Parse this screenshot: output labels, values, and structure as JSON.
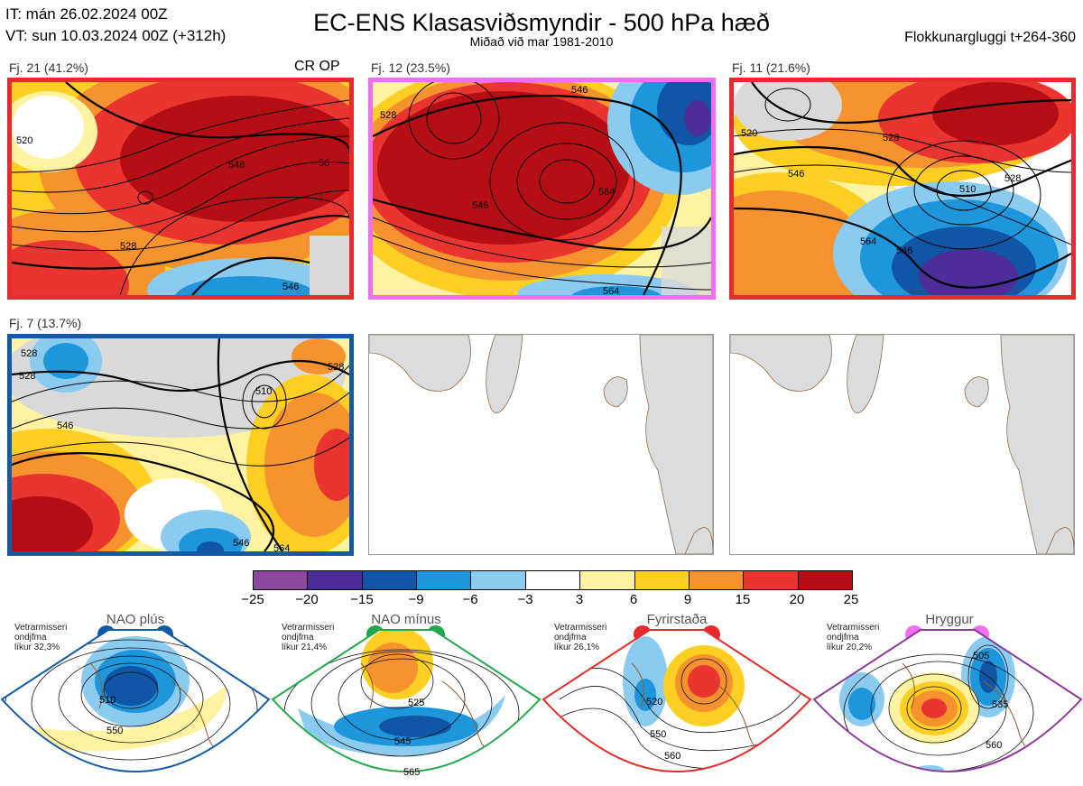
{
  "header": {
    "it": "IT: mán 26.02.2024 00Z",
    "vt": "VT: sun 10.03.2024 00Z  (+312h)",
    "title": "EC-ENS Klasasviðsmyndir - 500 hPa hæð",
    "subtitle": "Miðað við mar 1981-2010",
    "window": "Flokkunargluggi t+264-360"
  },
  "panels": [
    {
      "label": "Fj. 21 (41.2%)",
      "badge": "CR OP",
      "frame_color": "#e52b2b",
      "contours": [
        "520",
        "528",
        "546",
        "56",
        "546"
      ]
    },
    {
      "label": "Fj. 12 (23.5%)",
      "badge": "",
      "frame_color": "#ee6ff0",
      "contours": [
        "528",
        "546",
        "546",
        "564",
        "564"
      ]
    },
    {
      "label": "Fj. 11 (21.6%)",
      "badge": "",
      "frame_color": "#e52b2b",
      "contours": [
        "520",
        "528",
        "546",
        "510",
        "528",
        "546",
        "564"
      ]
    },
    {
      "label": "Fj. 7 (13.7%)",
      "badge": "",
      "frame_color": "#1259a6",
      "contours": [
        "528",
        "528",
        "510",
        "546",
        "528",
        "546",
        "564"
      ]
    }
  ],
  "colorbar": {
    "ticks": [
      "−25",
      "−20",
      "−15",
      "−9",
      "−6",
      "−3",
      "3",
      "6",
      "9",
      "15",
      "20",
      "25"
    ],
    "colors": [
      "#8e479e",
      "#4d2e98",
      "#0f56a6",
      "#1e96dc",
      "#8ccbf0",
      "#ffffff",
      "#fff3a2",
      "#fdcf22",
      "#f7932f",
      "#ea3430",
      "#b50e15"
    ]
  },
  "regimes": [
    {
      "name": "NAO plús",
      "note": [
        "Vetrarmisseri",
        "ondjfma",
        "líkur 32,3%"
      ],
      "color": "#1259a6",
      "contour_labels": [
        "510",
        "550"
      ]
    },
    {
      "name": "NAO mínus",
      "note": [
        "Vetrarmisseri",
        "ondjfma",
        "líkur 21,4%"
      ],
      "color": "#22a84a",
      "contour_labels": [
        "525",
        "545",
        "565"
      ]
    },
    {
      "name": "Fyrirstaða",
      "note": [
        "Vetrarmisseri",
        "ondjfma",
        "líkur 26,1%"
      ],
      "color": "#e52b2b",
      "contour_labels": [
        "520",
        "550",
        "560"
      ]
    },
    {
      "name": "Hryggur",
      "note": [
        "Vetrarmisseri",
        "ondjfma",
        "líkur 20,2%"
      ],
      "color": "#8c3a9a",
      "contour_labels": [
        "505",
        "535",
        "560"
      ]
    }
  ]
}
